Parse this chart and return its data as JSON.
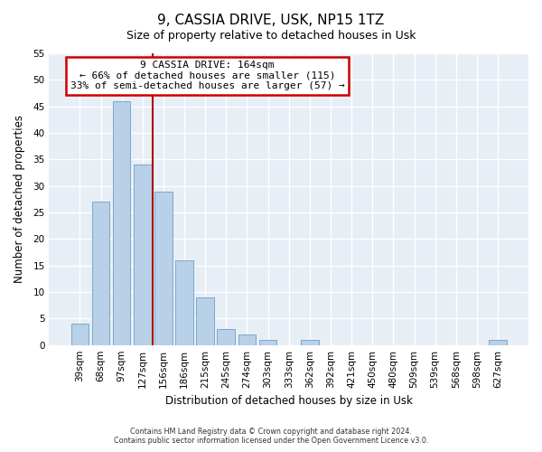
{
  "title": "9, CASSIA DRIVE, USK, NP15 1TZ",
  "subtitle": "Size of property relative to detached houses in Usk",
  "xlabel": "Distribution of detached houses by size in Usk",
  "ylabel": "Number of detached properties",
  "bar_labels": [
    "39sqm",
    "68sqm",
    "97sqm",
    "127sqm",
    "156sqm",
    "186sqm",
    "215sqm",
    "245sqm",
    "274sqm",
    "303sqm",
    "333sqm",
    "362sqm",
    "392sqm",
    "421sqm",
    "450sqm",
    "480sqm",
    "509sqm",
    "539sqm",
    "568sqm",
    "598sqm",
    "627sqm"
  ],
  "bar_values": [
    4,
    27,
    46,
    34,
    29,
    16,
    9,
    3,
    2,
    1,
    0,
    1,
    0,
    0,
    0,
    0,
    0,
    0,
    0,
    0,
    1
  ],
  "bar_color": "#b8d0e8",
  "bar_edge_color": "#7aa8cc",
  "vline_x": 3.5,
  "vline_color": "#aa0000",
  "annotation_title": "9 CASSIA DRIVE: 164sqm",
  "annotation_line1": "← 66% of detached houses are smaller (115)",
  "annotation_line2": "33% of semi-detached houses are larger (57) →",
  "annotation_box_facecolor": "#ffffff",
  "annotation_box_edge": "#cc0000",
  "ylim": [
    0,
    55
  ],
  "yticks": [
    0,
    5,
    10,
    15,
    20,
    25,
    30,
    35,
    40,
    45,
    50,
    55
  ],
  "footnote1": "Contains HM Land Registry data © Crown copyright and database right 2024.",
  "footnote2": "Contains public sector information licensed under the Open Government Licence v3.0.",
  "fig_bg_color": "#ffffff",
  "plot_bg_color": "#e8eef5",
  "grid_color": "#ffffff",
  "title_fontsize": 11,
  "subtitle_fontsize": 9,
  "tick_fontsize": 7.5,
  "label_fontsize": 8.5
}
